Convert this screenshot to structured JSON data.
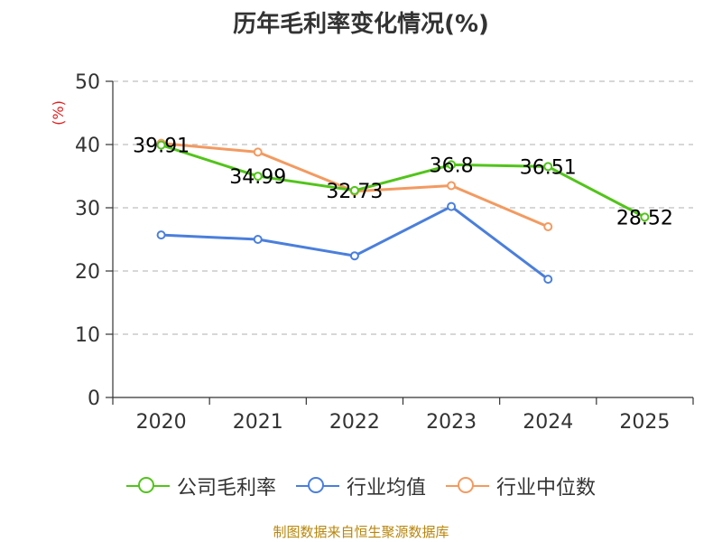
{
  "title": "历年毛利率变化情况(%)",
  "source": "制图数据来自恒生聚源数据库",
  "chart_data": {
    "type": "line",
    "title": "历年毛利率变化情况(%)",
    "ylabel": "(%)",
    "xlabel": "",
    "categories": [
      "2020",
      "2021",
      "2022",
      "2023",
      "2024",
      "2025"
    ],
    "ylim": [
      0,
      50
    ],
    "yticks": [
      0,
      10,
      20,
      30,
      40,
      50
    ],
    "grid": true,
    "legend_position": "bottom",
    "series": [
      {
        "name": "公司毛利率",
        "color": "#52c41a",
        "values": [
          39.91,
          34.99,
          32.73,
          36.8,
          36.51,
          28.52
        ],
        "labels": [
          "39.91",
          "34.99",
          "32.73",
          "36.8",
          "36.51",
          "28.52"
        ]
      },
      {
        "name": "行业均值",
        "color": "#4a7fdc",
        "values": [
          25.7,
          25.0,
          22.4,
          30.2,
          18.7,
          null
        ]
      },
      {
        "name": "行业中位数",
        "color": "#f39a60",
        "values": [
          40.2,
          38.8,
          32.6,
          33.5,
          27.0,
          null
        ]
      }
    ]
  }
}
